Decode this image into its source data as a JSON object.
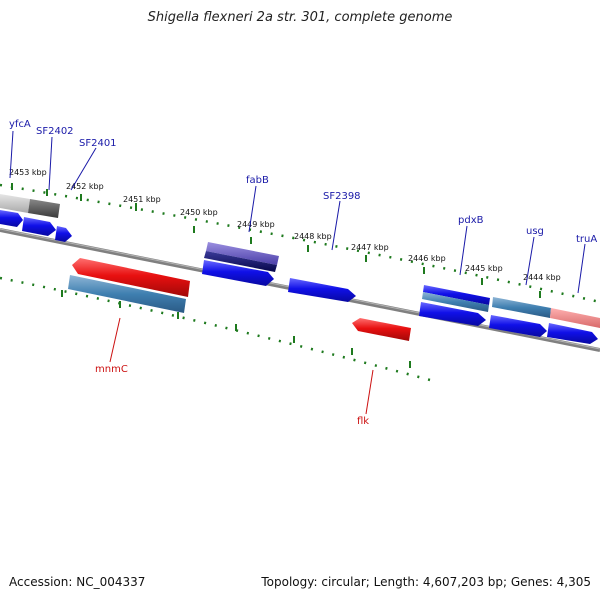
{
  "title": "Shigella flexneri 2a str. 301, complete genome",
  "footer": {
    "accession": "Accession: NC_004337",
    "topology": "Topology: circular; Length: 4,607,203 bp; Genes: 4,305"
  },
  "colors": {
    "forward": "#1010e0",
    "reverse": "#e01010",
    "forward_label": "#1a1aa8",
    "reverse_label": "#cc1111",
    "backbone": "#808080",
    "tick": "#1e7a1e"
  },
  "scale_labels": [
    "2453 kbp",
    "2452 kbp",
    "2451 kbp",
    "2450 kbp",
    "2449 kbp",
    "2448 kbp",
    "2447 kbp",
    "2446 kbp",
    "2445 kbp",
    "2444 kbp"
  ],
  "forward_genes": [
    "yfcA",
    "SF2402",
    "SF2401",
    "fabB",
    "SF2398",
    "pdxB",
    "usg",
    "truA"
  ],
  "reverse_genes": [
    "mnmC",
    "flk"
  ]
}
